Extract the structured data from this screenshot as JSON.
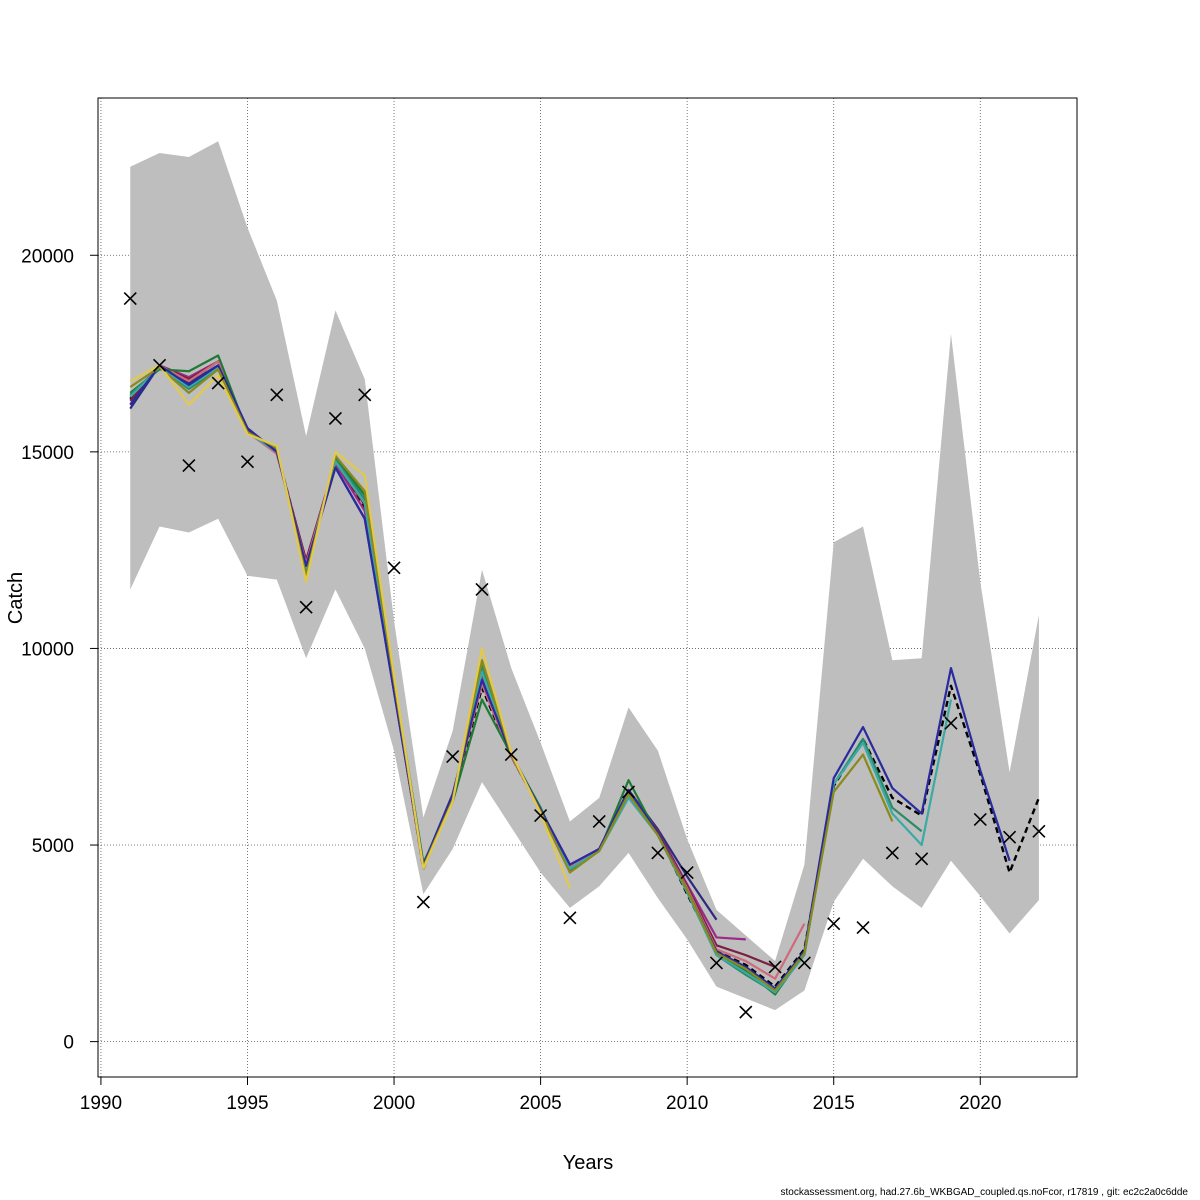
{
  "chart_data": {
    "type": "line",
    "title": "",
    "xlabel": "Years",
    "ylabel": "Catch",
    "xlim": [
      1989.9,
      2023.3
    ],
    "ylim": [
      -900,
      24000
    ],
    "xticks": [
      1990,
      1995,
      2000,
      2005,
      2010,
      2015,
      2020
    ],
    "yticks": [
      0,
      5000,
      10000,
      15000,
      20000
    ],
    "grid": true,
    "legend": "none",
    "band": {
      "x": [
        1991,
        1992,
        1993,
        1994,
        1995,
        1996,
        1997,
        1998,
        1999,
        2000,
        2001,
        2002,
        2003,
        2004,
        2005,
        2006,
        2007,
        2008,
        2009,
        2010,
        2011,
        2012,
        2013,
        2014,
        2015,
        2016,
        2017,
        2018,
        2019,
        2020,
        2021,
        2022
      ],
      "upper": [
        22250,
        22600,
        22500,
        22900,
        20700,
        18850,
        15400,
        18600,
        16850,
        10700,
        5700,
        7900,
        12000,
        9500,
        7600,
        5600,
        6200,
        8500,
        7400,
        5150,
        3350,
        2700,
        2050,
        4500,
        12700,
        13100,
        9700,
        9750,
        18000,
        11700,
        6850,
        10850
      ],
      "lower": [
        11500,
        13100,
        12950,
        13300,
        11850,
        11750,
        9750,
        11500,
        10000,
        7400,
        3750,
        4900,
        6600,
        5450,
        4300,
        3400,
        3950,
        4800,
        3650,
        2600,
        1400,
        1100,
        800,
        1300,
        3550,
        4650,
        3950,
        3400,
        4600,
        3700,
        2750,
        3600
      ]
    },
    "observed": {
      "x": [
        1991,
        1992,
        1993,
        1994,
        1995,
        1996,
        1997,
        1998,
        1999,
        2000,
        2001,
        2002,
        2003,
        2004,
        2005,
        2006,
        2007,
        2008,
        2009,
        2010,
        2011,
        2012,
        2013,
        2014,
        2015,
        2016,
        2017,
        2018,
        2019,
        2020,
        2021,
        2022
      ],
      "values": [
        18900,
        17200,
        14650,
        16750,
        14750,
        16450,
        11050,
        15850,
        16450,
        12050,
        3550,
        7250,
        11500,
        7300,
        5750,
        3150,
        5600,
        6350,
        4800,
        4300,
        2000,
        750,
        1900,
        2000,
        3000,
        2900,
        4800,
        4650,
        8100,
        5650,
        5200,
        5350
      ]
    },
    "series": [
      {
        "color": "#000000",
        "dashed": true,
        "x": [
          1991,
          1992,
          1993,
          1994,
          1995,
          1996,
          1997,
          1998,
          1999,
          2000,
          2001,
          2002,
          2003,
          2004,
          2005,
          2006,
          2007,
          2008,
          2009,
          2010,
          2011,
          2012,
          2013,
          2014,
          2015,
          2016,
          2017,
          2018,
          2019,
          2020,
          2021,
          2022
        ],
        "values": [
          16350,
          17150,
          16800,
          17300,
          15550,
          15000,
          12200,
          14750,
          13600,
          9000,
          4400,
          6200,
          9000,
          7250,
          5900,
          4400,
          4900,
          6300,
          5300,
          3750,
          2300,
          1950,
          1400,
          2350,
          6500,
          7700,
          6200,
          5750,
          9050,
          6800,
          4300,
          6200
        ]
      },
      {
        "color": "#2a2a80",
        "x": [
          1991,
          1992,
          1993,
          1994,
          1995,
          1996,
          1997,
          1998,
          1999,
          2000,
          2001,
          2002,
          2003,
          2004,
          2005,
          2006,
          2007,
          2008,
          2009,
          2010,
          2011
        ],
        "values": [
          16100,
          17200,
          16750,
          17200,
          15600,
          15000,
          12100,
          14600,
          13300,
          8900,
          4500,
          6300,
          9200,
          7300,
          5900,
          4500,
          4900,
          6400,
          5400,
          4200,
          3100
        ]
      },
      {
        "color": "#9b2a8a",
        "x": [
          1991,
          1992,
          1993,
          1994,
          1995,
          1996,
          1997,
          1998,
          1999,
          2000,
          2001,
          2002,
          2003,
          2004,
          2005,
          2006,
          2007,
          2008,
          2009,
          2010,
          2011,
          2012
        ],
        "values": [
          16200,
          17200,
          16900,
          17300,
          15550,
          15000,
          12200,
          14700,
          13500,
          8900,
          4450,
          6250,
          9300,
          7300,
          5900,
          4500,
          4900,
          6400,
          5350,
          4000,
          2650,
          2600
        ]
      },
      {
        "color": "#7a1f40",
        "x": [
          1991,
          1992,
          1993,
          1994,
          1995,
          1996,
          1997,
          1998,
          1999,
          2000,
          2001,
          2002,
          2003,
          2004,
          2005,
          2006,
          2007,
          2008,
          2009,
          2010,
          2011,
          2012,
          2013
        ],
        "values": [
          16300,
          17200,
          16850,
          17300,
          15550,
          14950,
          12250,
          14750,
          13650,
          8950,
          4450,
          6250,
          9100,
          7250,
          5900,
          4450,
          4900,
          6350,
          5350,
          3950,
          2450,
          2200,
          1900
        ]
      },
      {
        "color": "#cf6a7a",
        "x": [
          1991,
          1992,
          1993,
          1994,
          1995,
          1996,
          1997,
          1998,
          1999,
          2000,
          2001,
          2002,
          2003,
          2004,
          2005,
          2006,
          2007,
          2008,
          2009,
          2010,
          2011,
          2012,
          2013,
          2014
        ],
        "values": [
          16400,
          17200,
          16800,
          17300,
          15500,
          14950,
          12150,
          14750,
          13700,
          9000,
          4400,
          6250,
          9100,
          7250,
          5900,
          4450,
          4900,
          6350,
          5300,
          3900,
          2350,
          2050,
          1600,
          3000
        ]
      },
      {
        "color": "#1f7a35",
        "x": [
          1991,
          1992,
          1993,
          1994,
          1995,
          1996,
          1997,
          1998,
          1999,
          2000,
          2001,
          2002,
          2003,
          2004,
          2005,
          2006,
          2007,
          2008,
          2009,
          2010,
          2011,
          2012,
          2013,
          2014,
          2015
        ],
        "values": [
          16500,
          17100,
          17050,
          17450,
          15500,
          15050,
          11900,
          14850,
          13900,
          9200,
          4550,
          6100,
          8700,
          7300,
          5950,
          4350,
          4850,
          6650,
          5250,
          3800,
          2250,
          1800,
          1200,
          2250,
          6400
        ]
      },
      {
        "color": "#2a8a6a",
        "x": [
          1991,
          1992,
          1993,
          1994,
          1995,
          1996,
          1997,
          1998,
          1999,
          2000,
          2001,
          2002,
          2003,
          2004,
          2005,
          2006,
          2007,
          2008,
          2009,
          2010,
          2011,
          2012,
          2013,
          2014,
          2015,
          2016,
          2017,
          2018
        ],
        "values": [
          16450,
          17150,
          16600,
          17100,
          15500,
          15050,
          12000,
          14800,
          13800,
          9100,
          4450,
          6150,
          9550,
          7300,
          5900,
          4350,
          4850,
          6300,
          5300,
          3800,
          2200,
          1700,
          1250,
          2200,
          6550,
          7700,
          5950,
          5350
        ]
      },
      {
        "color": "#3aaaa5",
        "x": [
          1991,
          1992,
          1993,
          1994,
          1995,
          1996,
          1997,
          1998,
          1999,
          2000,
          2001,
          2002,
          2003,
          2004,
          2005,
          2006,
          2007,
          2008,
          2009,
          2010,
          2011,
          2012,
          2013,
          2014,
          2015,
          2016,
          2017,
          2018,
          2019
        ],
        "values": [
          16400,
          17150,
          16650,
          17150,
          15500,
          15000,
          12050,
          14750,
          13700,
          9050,
          4500,
          6200,
          9400,
          7300,
          5900,
          4400,
          4850,
          6200,
          5250,
          3800,
          2200,
          1750,
          1250,
          2200,
          6550,
          7600,
          5800,
          5000,
          8700
        ]
      },
      {
        "color": "#2a2aa0",
        "x": [
          1991,
          1992,
          1993,
          1994,
          1995,
          1996,
          1997,
          1998,
          1999,
          2000,
          2001,
          2002,
          2003,
          2004,
          2005,
          2006,
          2007,
          2008,
          2009,
          2010,
          2011,
          2012,
          2013,
          2014,
          2015,
          2016,
          2017,
          2018,
          2019,
          2020,
          2021
        ],
        "values": [
          16200,
          17200,
          16700,
          17200,
          15600,
          15000,
          12100,
          14600,
          13300,
          8900,
          4500,
          6250,
          9200,
          7300,
          5900,
          4500,
          4900,
          6400,
          5300,
          3850,
          2300,
          1900,
          1350,
          2300,
          6700,
          8000,
          6450,
          5800,
          9500,
          6900,
          4600
        ]
      },
      {
        "color": "#8a8a1a",
        "x": [
          1991,
          1992,
          1993,
          1994,
          1995,
          1996,
          1997,
          1998,
          1999,
          2000,
          2001,
          2002,
          2003,
          2004,
          2005,
          2006,
          2007,
          2008,
          2009,
          2010,
          2011,
          2012,
          2013,
          2014,
          2015,
          2016,
          2017
        ],
        "values": [
          16650,
          17150,
          16500,
          17100,
          15500,
          15100,
          11850,
          14900,
          14000,
          9150,
          4450,
          6150,
          9700,
          7300,
          5850,
          4300,
          4850,
          6300,
          5250,
          3850,
          2250,
          1850,
          1300,
          2250,
          6350,
          7300,
          5600
        ]
      },
      {
        "color": "#e3c94a",
        "x": [
          1991,
          1992,
          1993,
          1994,
          1995,
          1996,
          1997,
          1998,
          1999,
          2000,
          2001,
          2002,
          2003,
          2004,
          2005,
          2006
        ],
        "values": [
          16800,
          17200,
          16200,
          16950,
          15450,
          15150,
          11700,
          15000,
          14400,
          9300,
          4400,
          6100,
          10000,
          7350,
          5800,
          3900
        ]
      }
    ]
  },
  "footer": "stockassessment.org, had.27.6b_WKBGAD_coupled.qs.noFcor, r17819 , git: ec2c2a0c6dde"
}
